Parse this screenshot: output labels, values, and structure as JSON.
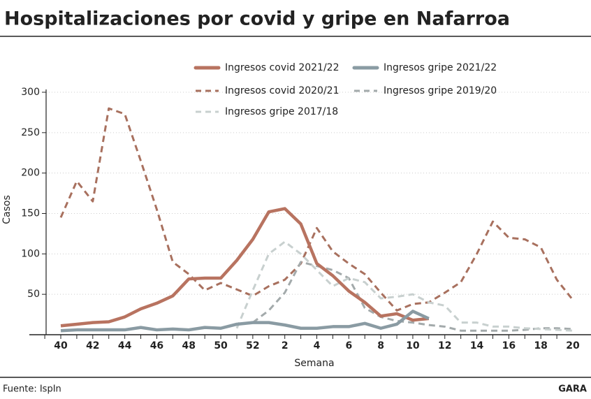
{
  "chart_data": {
    "type": "line",
    "title": "Hospitalizaciones por covid y gripe en Nafarroa",
    "y_label": "Casos",
    "x_label": "Semana",
    "source": "Fuente: IspIn",
    "brand": "GARA",
    "categories": [
      40,
      null,
      42,
      null,
      44,
      null,
      46,
      null,
      48,
      null,
      50,
      null,
      52,
      null,
      2,
      null,
      4,
      null,
      6,
      null,
      8,
      null,
      10,
      null,
      12,
      null,
      14,
      null,
      16,
      null,
      18,
      null,
      20
    ],
    "ylim": [
      0,
      300
    ],
    "yticks": [
      50,
      100,
      150,
      200,
      250,
      300
    ],
    "grid": true,
    "series": [
      {
        "name": "Ingresos covid 2021/22",
        "color": "#b87360",
        "dashed": false,
        "values": [
          11,
          13,
          15,
          16,
          22,
          32,
          39,
          48,
          69,
          70,
          70,
          92,
          118,
          152,
          156,
          137,
          88,
          73,
          54,
          40,
          23,
          26,
          18,
          20,
          null,
          null,
          null,
          null,
          null,
          null,
          null,
          null,
          null
        ]
      },
      {
        "name": "Ingresos gripe 2021/22",
        "color": "#8a9ba3",
        "dashed": false,
        "values": [
          5,
          6,
          6,
          6,
          6,
          9,
          6,
          7,
          6,
          9,
          8,
          13,
          15,
          15,
          12,
          8,
          8,
          10,
          10,
          14,
          8,
          13,
          29,
          20,
          null,
          null,
          null,
          null,
          null,
          null,
          null,
          null,
          null
        ]
      },
      {
        "name": "Ingresos covid 2020/21",
        "color": "#a8705e",
        "dashed": true,
        "values": [
          145,
          190,
          165,
          280,
          273,
          215,
          155,
          90,
          75,
          55,
          64,
          56,
          48,
          60,
          68,
          88,
          132,
          103,
          88,
          75,
          52,
          30,
          38,
          40,
          52,
          65,
          100,
          140,
          120,
          118,
          108,
          68,
          43
        ]
      },
      {
        "name": "Ingresos gripe 2019/20",
        "color": "#a3aaab",
        "dashed": true,
        "values": [
          null,
          null,
          null,
          null,
          null,
          null,
          null,
          null,
          null,
          null,
          null,
          null,
          15,
          30,
          52,
          90,
          85,
          80,
          70,
          33,
          22,
          17,
          15,
          12,
          10,
          5,
          5,
          5,
          5,
          6,
          8,
          8,
          7
        ]
      },
      {
        "name": "Ingresos gripe 2017/18",
        "color": "#c8d0cf",
        "dashed": true,
        "values": [
          null,
          null,
          null,
          null,
          null,
          null,
          null,
          null,
          null,
          null,
          null,
          8,
          55,
          100,
          115,
          100,
          80,
          60,
          70,
          65,
          45,
          47,
          50,
          40,
          36,
          15,
          15,
          10,
          10,
          8,
          7,
          6,
          5
        ]
      }
    ]
  }
}
